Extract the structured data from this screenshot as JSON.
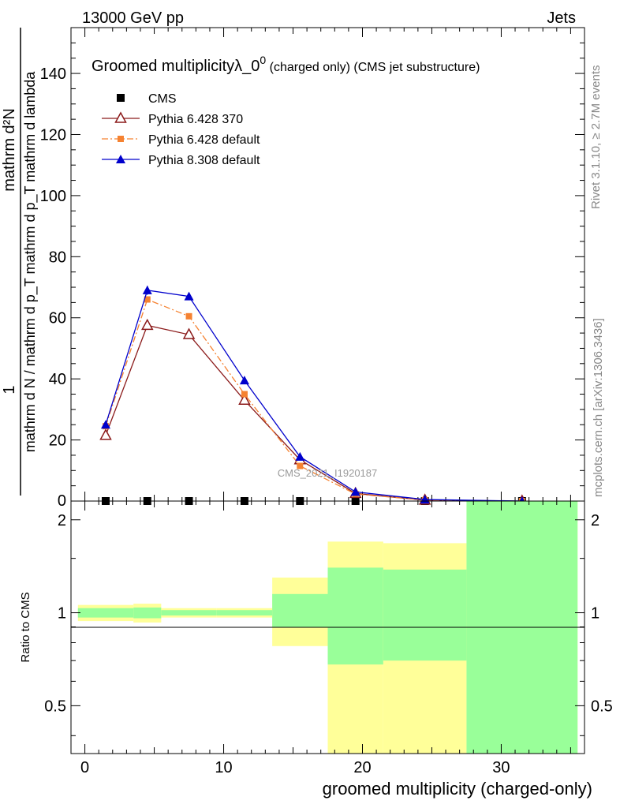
{
  "header": {
    "left": "13000 GeV pp",
    "right": "Jets"
  },
  "title": {
    "main": "Groomed multiplicityλ_0",
    "sup": "0",
    "small": " (charged only) (CMS jet substructure)"
  },
  "side_labels": {
    "rivet": "Rivet 3.1.10, ≥ 2.7M events",
    "mcplots": "mcplots.cern.ch [arXiv:1306.3436]"
  },
  "watermark": "CMS_2021_I1920187",
  "ylabel_main": {
    "numerator": "mathrm d²N",
    "denominator": "mathrm d N / mathrm d p_T mathrm d p_T mathrm d lambda",
    "prefix": "1",
    "slash_part": "mathrm d N / mathrm d p",
    "mid_part": "mathrm d p",
    "tail_part": "mathrm d lambda"
  },
  "ylabel_ratio": "Ratio to CMS",
  "xlabel": "groomed multiplicity (charged-only)",
  "colors": {
    "cms": "#000000",
    "py6_370": "#8b1a1a",
    "py6_default": "#f58231",
    "py8_default": "#0000cc",
    "band_inner": "#99ff99",
    "band_outer": "#ffff99"
  },
  "chart_data": {
    "type": "line",
    "xlim": [
      -1,
      36
    ],
    "ylim_main": [
      0,
      155
    ],
    "ylim_ratio": [
      0.35,
      2.3
    ],
    "yticks_main": [
      20,
      40,
      60,
      80,
      100,
      120,
      140
    ],
    "yticks_ratio": [
      0.5,
      1,
      2
    ],
    "xticks": [
      0,
      10,
      20,
      30
    ],
    "legend_position": "top-left",
    "series": [
      {
        "name": "CMS",
        "marker": "square",
        "x": [
          1.5,
          4.5,
          7.5,
          11.5,
          15.5,
          19.5,
          24.5,
          31.5
        ],
        "y": [
          0,
          0,
          0,
          0,
          0,
          0,
          0,
          0
        ]
      },
      {
        "name": "Pythia 6.428 370",
        "marker": "open-triangle",
        "style": "solid",
        "x": [
          1.5,
          4.5,
          7.5,
          11.5,
          15.5,
          19.5,
          24.5,
          31.5
        ],
        "y": [
          21.5,
          57.5,
          54.5,
          33.0,
          13.5,
          2.5,
          0.3,
          0.0
        ]
      },
      {
        "name": "Pythia 6.428 default",
        "marker": "square",
        "style": "dashdot",
        "x": [
          1.5,
          4.5,
          7.5,
          11.5,
          15.5,
          19.5,
          24.5,
          31.5
        ],
        "y": [
          24.5,
          66.0,
          60.5,
          35.0,
          11.5,
          2.3,
          0.3,
          0.0
        ]
      },
      {
        "name": "Pythia 8.308 default",
        "marker": "filled-triangle",
        "style": "solid",
        "x": [
          1.5,
          4.5,
          7.5,
          11.5,
          15.5,
          19.5,
          24.5,
          31.5
        ],
        "y": [
          25.0,
          69.0,
          67.0,
          39.5,
          14.5,
          3.0,
          0.5,
          0.0
        ]
      }
    ],
    "ratio_bands": [
      {
        "xlo": -0.5,
        "xhi": 3.5,
        "inner": [
          0.965,
          1.035
        ],
        "outer": [
          0.94,
          1.06
        ]
      },
      {
        "xlo": 3.5,
        "xhi": 5.5,
        "inner": [
          0.96,
          1.04
        ],
        "outer": [
          0.93,
          1.07
        ]
      },
      {
        "xlo": 5.5,
        "xhi": 9.5,
        "inner": [
          0.98,
          1.02
        ],
        "outer": [
          0.965,
          1.035
        ]
      },
      {
        "xlo": 9.5,
        "xhi": 13.5,
        "inner": [
          0.98,
          1.02
        ],
        "outer": [
          0.965,
          1.035
        ]
      },
      {
        "xlo": 13.5,
        "xhi": 17.5,
        "inner": [
          0.9,
          1.15
        ],
        "outer": [
          0.78,
          1.3
        ]
      },
      {
        "xlo": 17.5,
        "xhi": 21.5,
        "inner": [
          0.68,
          1.4
        ],
        "outer": [
          0.35,
          1.7
        ]
      },
      {
        "xlo": 21.5,
        "xhi": 27.5,
        "inner": [
          0.7,
          1.38
        ],
        "outer": [
          0.35,
          1.68
        ]
      },
      {
        "xlo": 27.5,
        "xhi": 35.5,
        "inner": [
          0.35,
          2.3
        ],
        "outer": [
          0.35,
          2.3
        ]
      }
    ]
  }
}
